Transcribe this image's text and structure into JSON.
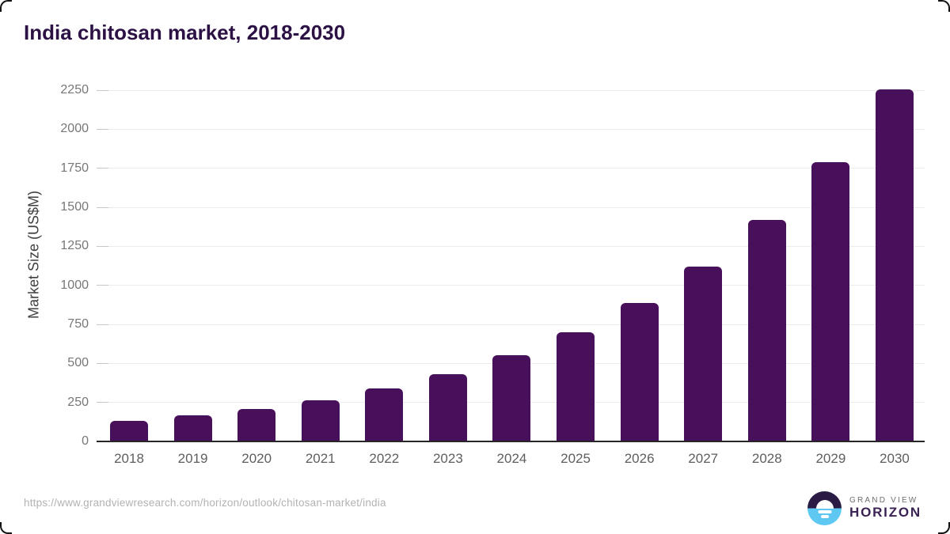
{
  "source_url": "https://www.grandviewresearch.com/horizon/outlook/chitosan-market/india",
  "logo": {
    "top": "GRAND VIEW",
    "bottom": "HORIZON"
  },
  "colors": {
    "bar": "#48105A",
    "title": "#2C1144",
    "baseline": "#262626",
    "gridline": "#ECECEC",
    "tick": "#C6C6C6",
    "y_label": "#777777",
    "x_label": "#5E5E5E",
    "logo_dark": "#2A1B45",
    "logo_blue": "#5EC8F2"
  },
  "chart_data": {
    "type": "bar",
    "title": "India chitosan market, 2018-2030",
    "categories": [
      "2018",
      "2019",
      "2020",
      "2021",
      "2022",
      "2023",
      "2024",
      "2025",
      "2026",
      "2027",
      "2028",
      "2029",
      "2030"
    ],
    "values": [
      130,
      165,
      210,
      265,
      340,
      430,
      550,
      700,
      885,
      1120,
      1420,
      1790,
      2255
    ],
    "xlabel": "",
    "ylabel": "Market Size (US$M)",
    "ylim": [
      0,
      2250
    ],
    "yticks": [
      0,
      250,
      500,
      750,
      1000,
      1250,
      1500,
      1750,
      2000,
      2250
    ],
    "grid": "horizontal",
    "legend": "none",
    "bar_color": "#48105A"
  }
}
